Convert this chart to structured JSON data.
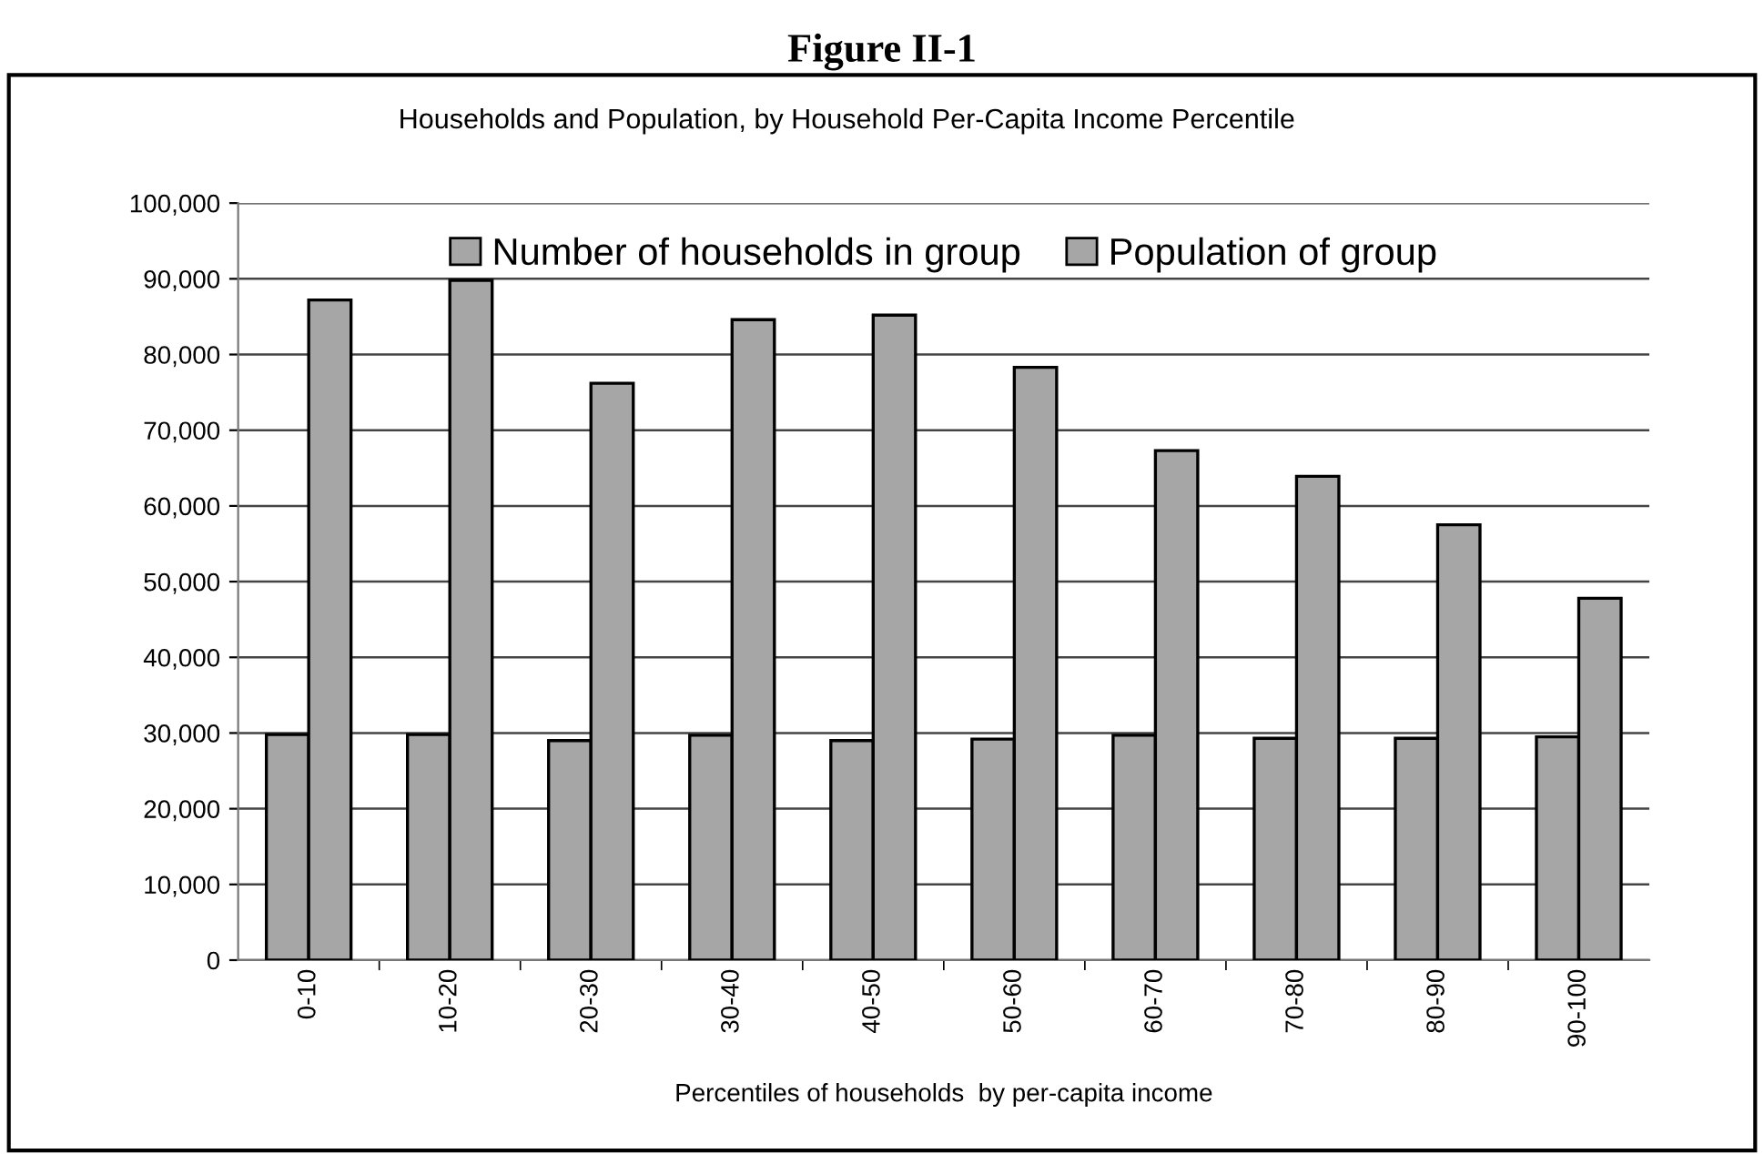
{
  "chart_data": {
    "type": "bar",
    "title": "Figure II-1",
    "subtitle": "Households and Population, by Household Per-Capita Income Percentile",
    "xlabel": "Percentiles of households  by per-capita income",
    "categories": [
      "0-10",
      "10-20",
      "20-30",
      "30-40",
      "40-50",
      "50-60",
      "60-70",
      "70-80",
      "80-90",
      "90-100"
    ],
    "series": [
      {
        "name": "Number of households in group",
        "color": "#a6a6a6",
        "values": [
          29800,
          29800,
          29000,
          29700,
          29000,
          29200,
          29700,
          29300,
          29300,
          29500
        ]
      },
      {
        "name": "Population of group",
        "color": "#a6a6a6",
        "values": [
          87200,
          89800,
          76200,
          84600,
          85200,
          78300,
          67300,
          63900,
          57500,
          47800
        ]
      }
    ],
    "ylim": [
      0,
      100000
    ],
    "yticks": [
      {
        "value": 0,
        "label": "0"
      },
      {
        "value": 10000,
        "label": "10,000"
      },
      {
        "value": 20000,
        "label": "20,000"
      },
      {
        "value": 30000,
        "label": "30,000"
      },
      {
        "value": 40000,
        "label": "40,000"
      },
      {
        "value": 50000,
        "label": "50,000"
      },
      {
        "value": 60000,
        "label": "60,000"
      },
      {
        "value": 70000,
        "label": "70,000"
      },
      {
        "value": 80000,
        "label": "80,000"
      },
      {
        "value": 90000,
        "label": "90,000"
      },
      {
        "value": 100000,
        "label": "100,000"
      }
    ],
    "grid": "y",
    "legend": "top"
  }
}
